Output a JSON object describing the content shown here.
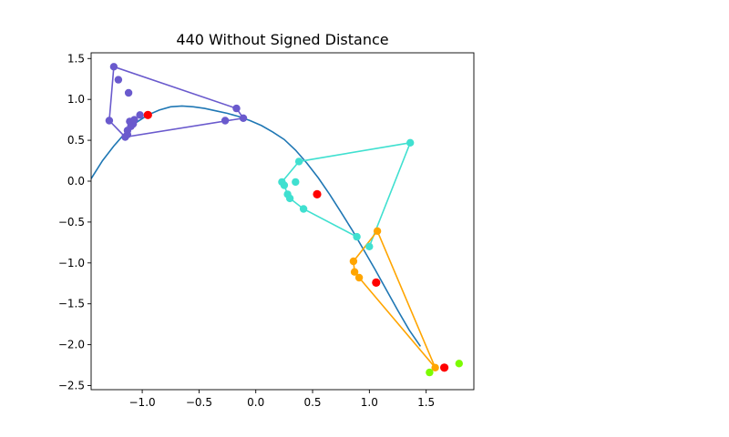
{
  "chart_data": {
    "type": "line",
    "title": "440 Without Signed Distance",
    "xlabel": "",
    "ylabel": "",
    "xlim": [
      -1.45,
      1.92
    ],
    "ylim": [
      -2.55,
      1.57
    ],
    "xticks": [
      -1.0,
      -0.5,
      0.0,
      0.5,
      1.0,
      1.5
    ],
    "xtick_labels": [
      "−1.0",
      "−0.5",
      "0.0",
      "0.5",
      "1.0",
      "1.5"
    ],
    "yticks": [
      -2.5,
      -2.0,
      -1.5,
      -1.0,
      -0.5,
      0.0,
      0.5,
      1.0,
      1.5
    ],
    "ytick_labels": [
      "−2.5",
      "−2.0",
      "−1.5",
      "−1.0",
      "−0.5",
      "0.0",
      "0.5",
      "1.0",
      "1.5"
    ],
    "grid": false,
    "curve": {
      "color": "#1f77b4",
      "x": [
        -1.45,
        -1.35,
        -1.25,
        -1.15,
        -1.05,
        -0.95,
        -0.85,
        -0.75,
        -0.65,
        -0.55,
        -0.45,
        -0.35,
        -0.25,
        -0.15,
        -0.05,
        0.05,
        0.15,
        0.25,
        0.35,
        0.45,
        0.55,
        0.65,
        0.75,
        0.85,
        0.95,
        1.05,
        1.15,
        1.25,
        1.35,
        1.45
      ],
      "y": [
        0.03,
        0.25,
        0.43,
        0.59,
        0.72,
        0.81,
        0.87,
        0.91,
        0.92,
        0.91,
        0.89,
        0.86,
        0.83,
        0.79,
        0.74,
        0.68,
        0.6,
        0.51,
        0.38,
        0.22,
        0.04,
        -0.16,
        -0.38,
        -0.6,
        -0.84,
        -1.08,
        -1.33,
        -1.58,
        -1.82,
        -2.02
      ]
    },
    "series": [
      {
        "color": "#6a5acd",
        "points": [
          [
            -1.25,
            1.4
          ],
          [
            -1.21,
            1.24
          ],
          [
            -1.12,
            1.08
          ],
          [
            -1.29,
            0.74
          ],
          [
            -1.15,
            0.54
          ],
          [
            -1.13,
            0.57
          ],
          [
            -1.13,
            0.62
          ],
          [
            -1.1,
            0.67
          ],
          [
            -1.08,
            0.7
          ],
          [
            -1.11,
            0.73
          ],
          [
            -1.07,
            0.75
          ],
          [
            -1.02,
            0.81
          ],
          [
            -0.27,
            0.74
          ],
          [
            -0.17,
            0.89
          ],
          [
            -0.11,
            0.77
          ]
        ],
        "path": [
          [
            -1.25,
            1.4
          ],
          [
            -0.17,
            0.89
          ],
          [
            -0.11,
            0.77
          ],
          [
            -1.15,
            0.54
          ],
          [
            -1.29,
            0.74
          ],
          [
            -1.25,
            1.4
          ]
        ],
        "centroid": [
          -0.95,
          0.81
        ]
      },
      {
        "color": "#40e0d0",
        "points": [
          [
            0.38,
            0.24
          ],
          [
            1.36,
            0.47
          ],
          [
            0.23,
            -0.01
          ],
          [
            0.25,
            -0.05
          ],
          [
            0.35,
            -0.01
          ],
          [
            0.28,
            -0.16
          ],
          [
            0.3,
            -0.21
          ],
          [
            0.42,
            -0.34
          ],
          [
            0.89,
            -0.68
          ],
          [
            1.0,
            -0.8
          ]
        ],
        "path": [
          [
            1.0,
            -0.8
          ],
          [
            1.36,
            0.47
          ],
          [
            0.38,
            0.24
          ],
          [
            0.23,
            -0.01
          ],
          [
            0.25,
            -0.05
          ],
          [
            0.28,
            -0.16
          ],
          [
            0.3,
            -0.21
          ],
          [
            0.42,
            -0.34
          ],
          [
            0.89,
            -0.68
          ]
        ],
        "centroid": [
          0.54,
          -0.16
        ]
      },
      {
        "color": "#ffa500",
        "points": [
          [
            1.07,
            -0.61
          ],
          [
            0.86,
            -0.98
          ],
          [
            0.87,
            -1.11
          ],
          [
            0.91,
            -1.18
          ],
          [
            1.58,
            -2.28
          ]
        ],
        "path": [
          [
            1.07,
            -0.61
          ],
          [
            1.58,
            -2.28
          ],
          [
            0.91,
            -1.18
          ],
          [
            0.87,
            -1.11
          ],
          [
            0.86,
            -0.98
          ],
          [
            1.07,
            -0.61
          ]
        ],
        "centroid": [
          1.06,
          -1.24
        ]
      },
      {
        "color": "#7cfc00",
        "points": [
          [
            1.53,
            -2.34
          ],
          [
            1.79,
            -2.23
          ]
        ],
        "path": [],
        "centroid": [
          1.66,
          -2.28
        ]
      }
    ],
    "centroid_color": "#ff0000"
  }
}
